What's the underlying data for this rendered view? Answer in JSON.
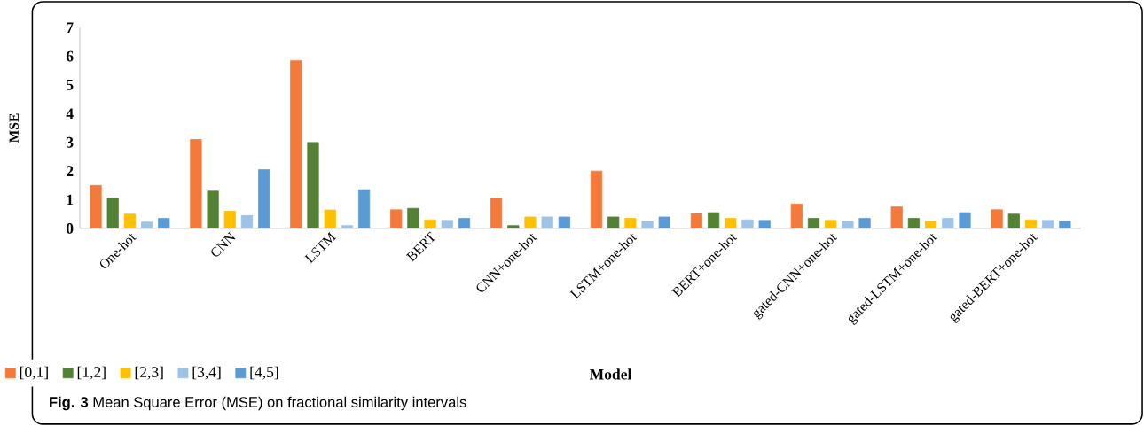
{
  "chart_data": {
    "type": "bar",
    "xlabel": "Model",
    "ylabel": "MSE",
    "categories": [
      "One-hot",
      "CNN",
      "LSTM",
      "BERT",
      "CNN+one-hot",
      "LSTM+one-hot",
      "BERT+one-hot",
      "gated-CNN+one-hot",
      "gated-LSTM+one-hot",
      "gated-BERT+one-hot"
    ],
    "series": [
      {
        "name": "[0,1]",
        "color": "#f4793b",
        "values": [
          1.5,
          3.1,
          5.85,
          0.65,
          1.05,
          2.0,
          0.52,
          0.85,
          0.75,
          0.65
        ]
      },
      {
        "name": "[1,2]",
        "color": "#548235",
        "values": [
          1.05,
          1.3,
          3.0,
          0.7,
          0.1,
          0.4,
          0.55,
          0.35,
          0.35,
          0.5
        ]
      },
      {
        "name": "[2,3]",
        "color": "#ffc000",
        "values": [
          0.5,
          0.6,
          0.65,
          0.3,
          0.4,
          0.35,
          0.35,
          0.28,
          0.25,
          0.3
        ]
      },
      {
        "name": "[3,4]",
        "color": "#9dc3e6",
        "values": [
          0.22,
          0.45,
          0.1,
          0.28,
          0.4,
          0.25,
          0.3,
          0.25,
          0.35,
          0.28
        ]
      },
      {
        "name": "[4,5]",
        "color": "#5b9bd5",
        "values": [
          0.35,
          2.05,
          1.35,
          0.35,
          0.4,
          0.4,
          0.28,
          0.35,
          0.55,
          0.25
        ]
      }
    ],
    "ylim": [
      0,
      7
    ],
    "yticks": [
      0,
      1,
      2,
      3,
      4,
      5,
      6,
      7
    ],
    "grid": false,
    "legend": "bottom left",
    "annotations": [
      "**Fig. 3** Mean Square Error (MSE) on fractional similarity intervals"
    ]
  }
}
